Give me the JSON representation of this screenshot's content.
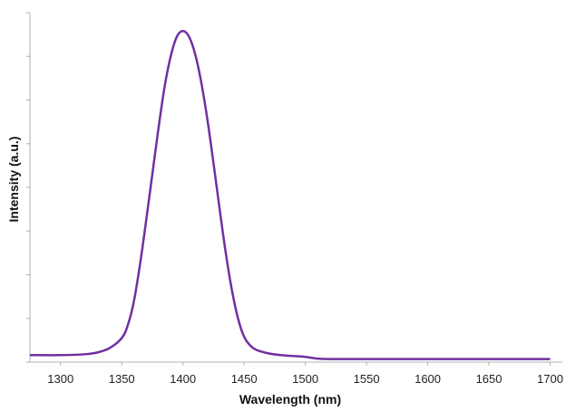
{
  "chart_data": {
    "type": "line",
    "title": "",
    "xlabel": "Wavelength (nm)",
    "ylabel": "Intensity (a.u.)",
    "xlim": [
      1275,
      1710
    ],
    "ylim": [
      0,
      8
    ],
    "x_ticks": [
      1300,
      1350,
      1400,
      1450,
      1500,
      1550,
      1600,
      1650,
      1700
    ],
    "x_tick_labels": [
      "1300",
      "1350",
      "1400",
      "1450",
      "1500",
      "1550",
      "1600",
      "1650",
      "1700"
    ],
    "y_ticks": [
      0,
      1,
      2,
      3,
      4,
      5,
      6,
      7,
      8
    ],
    "y_tick_labels_shown": false,
    "grid": false,
    "legend": "none",
    "series": [
      {
        "color": "#7030a0",
        "x": [
          1275,
          1300,
          1320,
          1330,
          1340,
          1350,
          1355,
          1360,
          1365,
          1370,
          1375,
          1380,
          1385,
          1390,
          1395,
          1400,
          1405,
          1410,
          1415,
          1420,
          1425,
          1430,
          1435,
          1440,
          1445,
          1450,
          1455,
          1460,
          1470,
          1480,
          1490,
          1500,
          1510,
          1520,
          1550,
          1600,
          1650,
          1700
        ],
        "y": [
          0.16,
          0.16,
          0.18,
          0.22,
          0.32,
          0.55,
          0.85,
          1.4,
          2.25,
          3.25,
          4.3,
          5.35,
          6.3,
          7.0,
          7.45,
          7.58,
          7.45,
          7.05,
          6.4,
          5.55,
          4.55,
          3.5,
          2.5,
          1.65,
          1.0,
          0.58,
          0.38,
          0.28,
          0.2,
          0.16,
          0.14,
          0.12,
          0.08,
          0.07,
          0.07,
          0.07,
          0.07,
          0.07
        ]
      }
    ]
  }
}
